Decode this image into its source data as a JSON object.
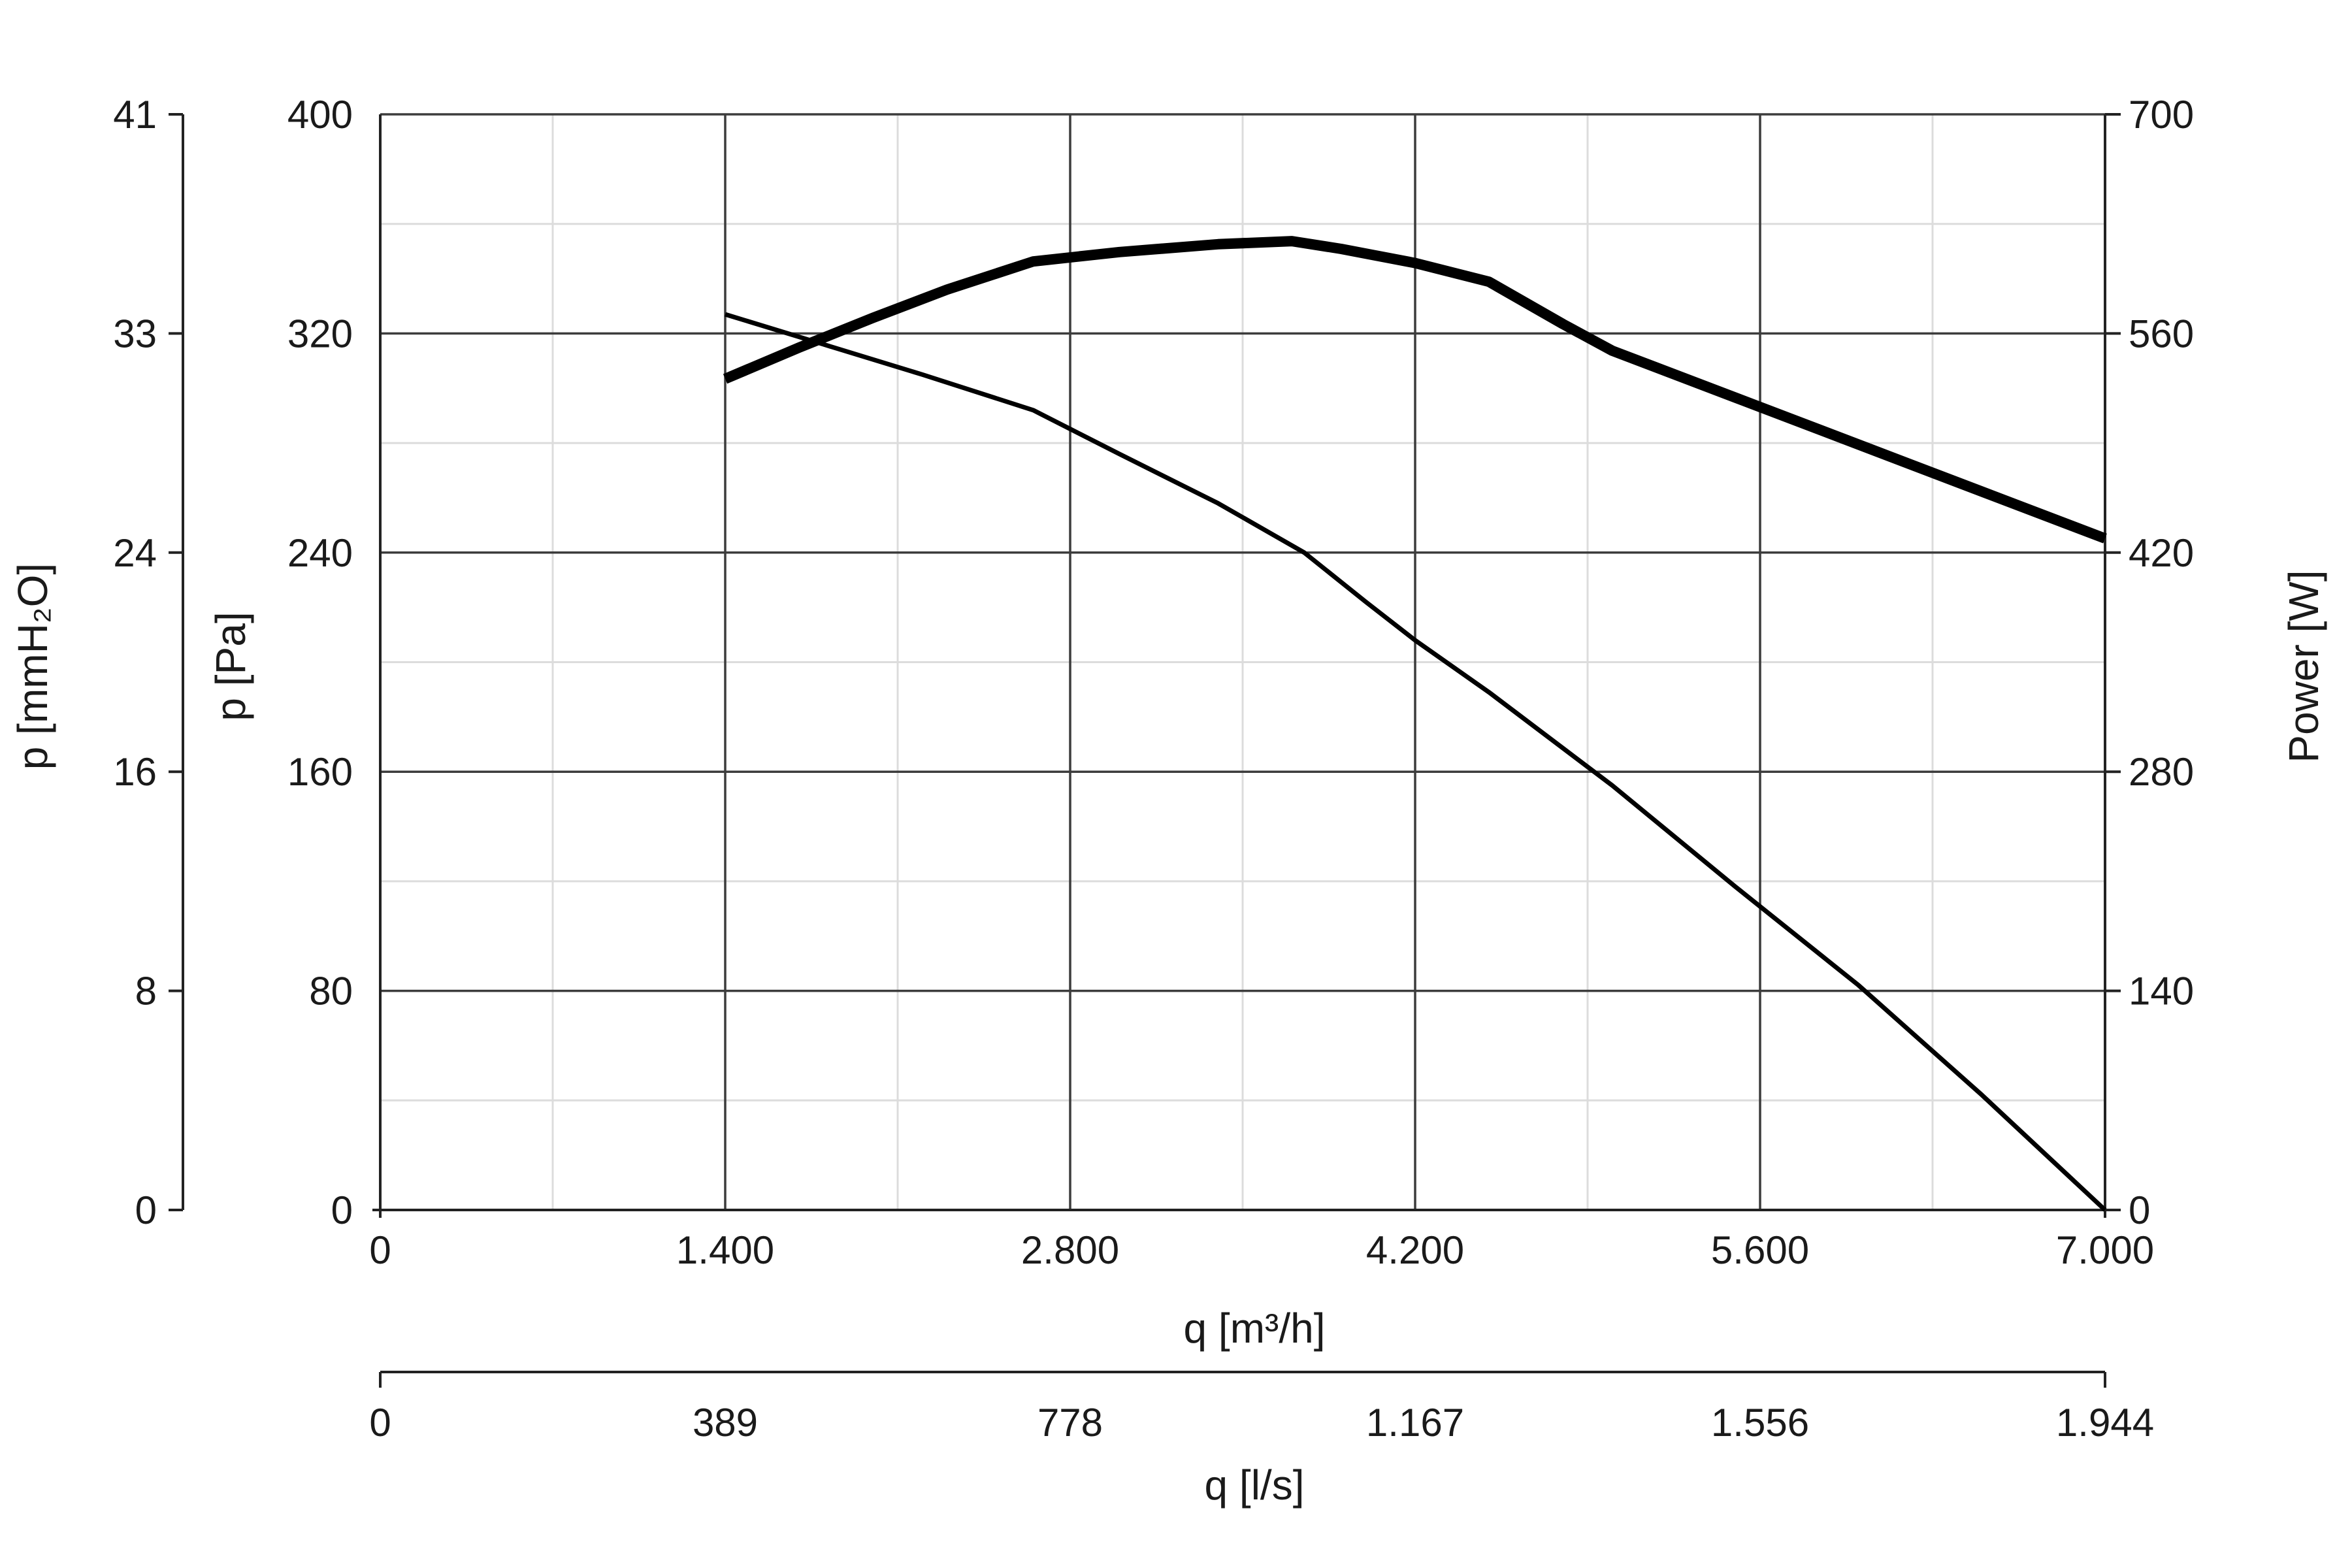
{
  "chart_data": {
    "type": "line",
    "x_axis": {
      "label": "q [m³/h]",
      "ticks": [
        "0",
        "1.400",
        "2.800",
        "4.200",
        "5.600",
        "7.000"
      ],
      "range": [
        0,
        7000
      ]
    },
    "x2_axis": {
      "label": "q [l/s]",
      "ticks": [
        "0",
        "389",
        "778",
        "1.167",
        "1.556",
        "1.944"
      ],
      "range": [
        0,
        1944
      ]
    },
    "y_axis": {
      "label": "p [Pa]",
      "ticks": [
        "0",
        "80",
        "160",
        "240",
        "320",
        "400"
      ],
      "range": [
        0,
        400
      ]
    },
    "y_outer_axis": {
      "label": "p [mmH₂O]",
      "ticks": [
        "0",
        "8",
        "16",
        "24",
        "33",
        "41"
      ],
      "range": [
        0,
        41
      ]
    },
    "y2_axis": {
      "label": "Power [W]",
      "ticks": [
        "0",
        "140",
        "280",
        "420",
        "560",
        "700"
      ],
      "range": [
        0,
        700
      ]
    },
    "grid": true,
    "series": [
      {
        "axis": "left",
        "color": "#000000",
        "x": [
          1400,
          1800,
          2200,
          2650,
          3000,
          3400,
          3750,
          4000,
          4200,
          4500,
          5000,
          5500,
          6000,
          6500,
          7000
        ],
        "y": [
          327,
          316,
          305,
          292,
          276,
          258,
          240,
          222,
          208,
          189,
          155,
          118,
          82,
          42,
          0
        ]
      },
      {
        "axis": "right",
        "color": "#000000",
        "x": [
          1400,
          1700,
          2000,
          2300,
          2650,
          3000,
          3400,
          3700,
          3900,
          4200,
          4500,
          4800,
          5000,
          5500,
          6000,
          6500,
          7000
        ],
        "y": [
          531,
          551,
          570,
          588,
          606,
          612,
          617,
          619,
          614,
          605,
          593,
          566,
          549,
          519,
          489,
          459,
          429
        ]
      }
    ]
  }
}
